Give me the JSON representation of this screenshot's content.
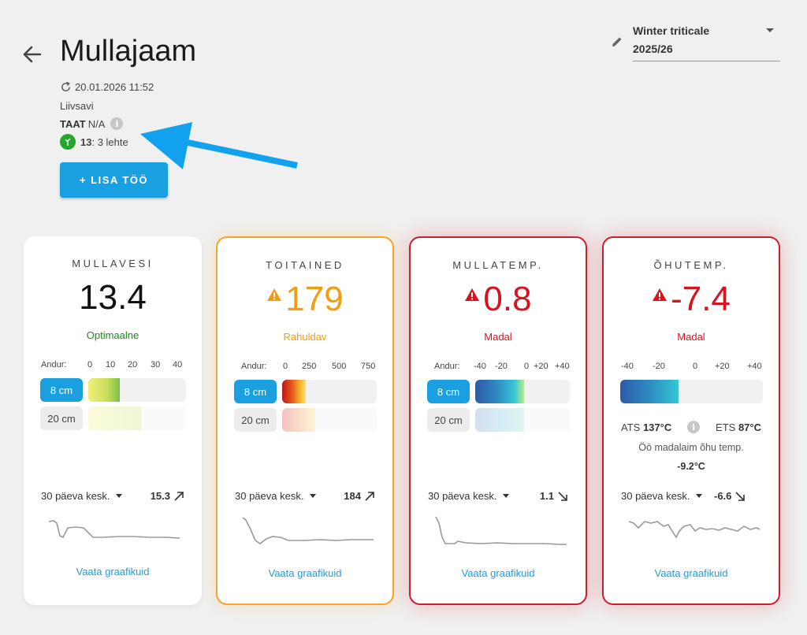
{
  "header": {
    "title": "Mullajaam",
    "timestamp": "20.01.2026 11:52",
    "soil_type": "Liivsavi",
    "taat_label": "TAAT",
    "taat_value": " N/A",
    "stage_code": "13",
    "stage_text": ": 3 lehte",
    "add_button_label": "+ LISA TÖÖ"
  },
  "crop": {
    "name": "Winter triticale",
    "season": "2025/26"
  },
  "cards": {
    "mullavesi": {
      "title": "MULLAVESI",
      "value": "13.4",
      "status": "Optimaalne",
      "status_color": "#1b8a1b",
      "scale": [
        "Andur:",
        "0",
        "10",
        "20",
        "30",
        "40"
      ],
      "depths": [
        "8 cm",
        "20 cm"
      ],
      "avg_label": "30 päeva kesk.",
      "avg_value": "15.3",
      "trend": "up",
      "link": "Vaata graafikuid"
    },
    "toitained": {
      "title": "TOITAINED",
      "value": "179",
      "status": "Rahuldav",
      "status_color": "#f39c12",
      "scale": [
        "Andur:",
        "0",
        "250",
        "500",
        "750"
      ],
      "depths": [
        "8 cm",
        "20 cm"
      ],
      "avg_label": "30 päeva kesk.",
      "avg_value": "184",
      "trend": "up",
      "link": "Vaata graafikuid"
    },
    "mullatemp": {
      "title": "MULLATEMP.",
      "value": "0.8",
      "status": "Madal",
      "status_color": "#d9121f",
      "scale": [
        "Andur:",
        "-40",
        "-20",
        "0",
        "+20",
        "+40"
      ],
      "depths": [
        "8 cm",
        "20 cm"
      ],
      "avg_label": "30 päeva kesk.",
      "avg_value": "1.1",
      "trend": "down",
      "link": "Vaata graafikuid"
    },
    "ohutemp": {
      "title": "ÕHUTEMP.",
      "value": "-7.4",
      "status": "Madal",
      "status_color": "#d9121f",
      "scale": [
        "-40",
        "-20",
        "0",
        "+20",
        "+40"
      ],
      "ats_label": "ATS ",
      "ats_value": "137°C",
      "ets_label": "ETS ",
      "ets_value": "87°C",
      "night_label": "Öö madalaim õhu temp.",
      "night_value": "-9.2°C",
      "avg_label": "30 päeva kesk.",
      "avg_value": "-6.6",
      "trend": "down",
      "link": "Vaata graafikuid"
    }
  },
  "icons": {
    "back": "arrow-left-icon",
    "refresh": "refresh-icon",
    "info": "info-icon",
    "stage": "plant-stage-icon",
    "edit": "pencil-icon",
    "warning": "warning-triangle-icon"
  },
  "colors": {
    "accent": "#1a9fe0",
    "warning_orange": "#f7a428",
    "alert_red": "#cc1f2e"
  }
}
